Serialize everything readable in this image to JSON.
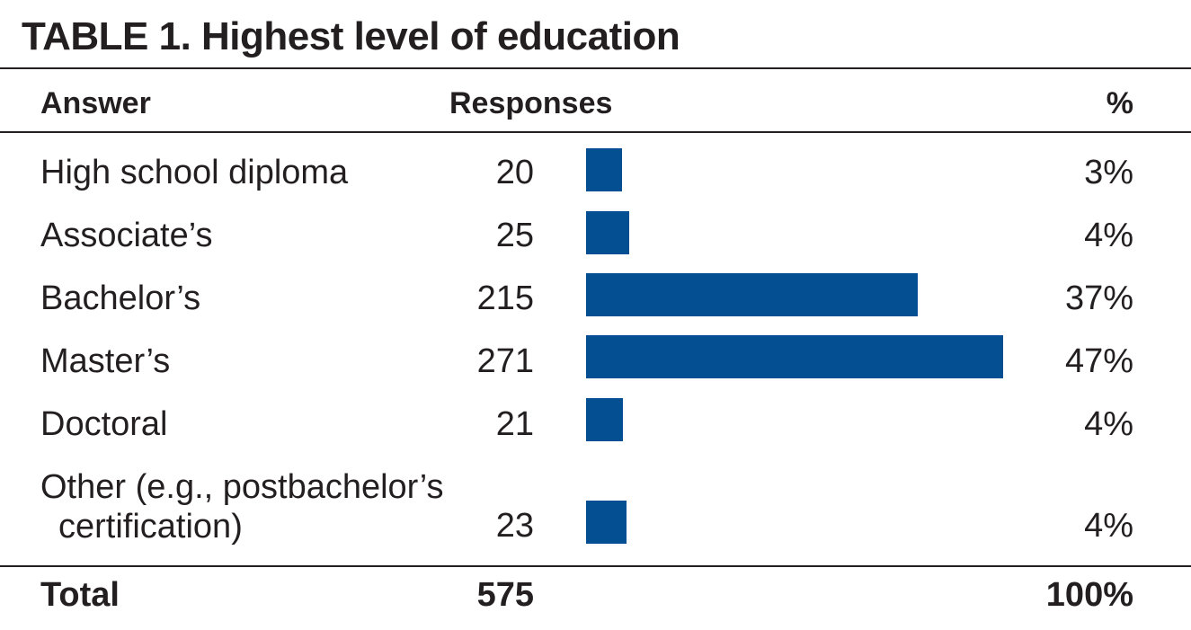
{
  "title": "TABLE 1. Highest level of education",
  "chart_data": {
    "type": "bar",
    "orientation": "horizontal",
    "headers": {
      "answer": "Answer",
      "responses": "Responses",
      "percent": "%"
    },
    "rows": [
      {
        "answer": "High school diploma",
        "answer_line2": "",
        "responses": 20,
        "percent": "3%"
      },
      {
        "answer": "Associate’s",
        "answer_line2": "",
        "responses": 25,
        "percent": "4%"
      },
      {
        "answer": "Bachelor’s",
        "answer_line2": "",
        "responses": 215,
        "percent": "37%"
      },
      {
        "answer": "Master’s",
        "answer_line2": "",
        "responses": 271,
        "percent": "47%"
      },
      {
        "answer": "Doctoral",
        "answer_line2": "",
        "responses": 21,
        "percent": "4%"
      },
      {
        "answer": "Other (e.g., postbachelor’s",
        "answer_line2": "certification)",
        "responses": 23,
        "percent": "4%"
      }
    ],
    "total": {
      "label": "Total",
      "responses": 575,
      "percent": "100%"
    },
    "bar_color": "#034f91"
  }
}
